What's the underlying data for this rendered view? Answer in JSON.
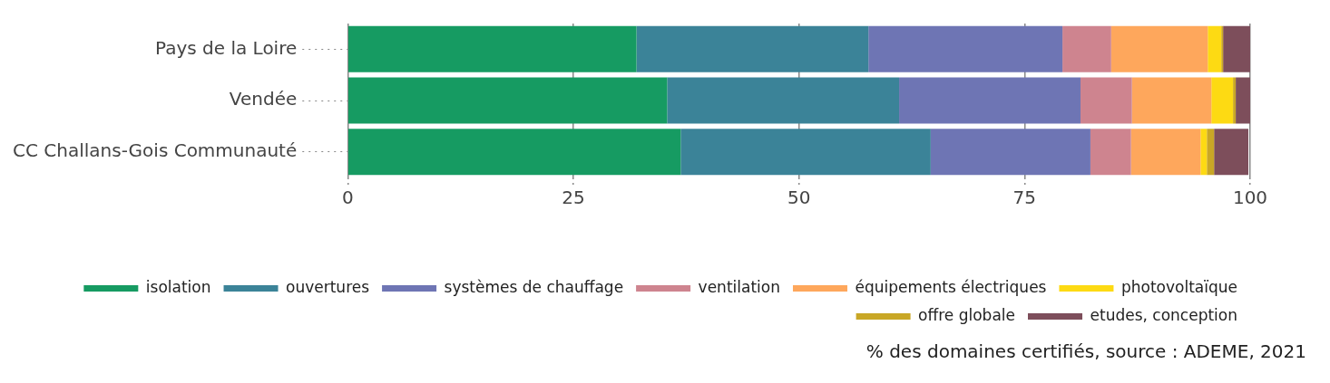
{
  "chart_data": {
    "type": "bar",
    "orientation": "horizontal",
    "stacked": true,
    "categories": [
      "Pays de la Loire",
      "Vendée",
      "CC Challans-Gois Communauté"
    ],
    "series": [
      {
        "name": "isolation",
        "color": "#169b62",
        "values": [
          32.0,
          35.4,
          36.9
        ]
      },
      {
        "name": "ouvertures",
        "color": "#3b8398",
        "values": [
          25.7,
          25.7,
          27.7
        ]
      },
      {
        "name": "systèmes de chauffage",
        "color": "#6e75b4",
        "values": [
          21.5,
          20.1,
          17.7
        ]
      },
      {
        "name": "ventilation",
        "color": "#ce848f",
        "values": [
          5.4,
          5.7,
          4.5
        ]
      },
      {
        "name": "équipements électriques",
        "color": "#fea75c",
        "values": [
          10.7,
          8.8,
          7.7
        ]
      },
      {
        "name": "photovoltaïque",
        "color": "#fdda13",
        "values": [
          1.5,
          2.4,
          0.7
        ]
      },
      {
        "name": "offre globale",
        "color": "#c9a726",
        "values": [
          0.2,
          0.3,
          0.8
        ]
      },
      {
        "name": "etudes, conception",
        "color": "#7d4e5b",
        "values": [
          3.0,
          1.6,
          3.8
        ]
      }
    ],
    "xlim": [
      0,
      100
    ],
    "xticks": [
      0,
      25,
      50,
      75,
      100
    ],
    "grid": "x",
    "legend": "bottom",
    "annotations": [
      "% des domaines certifiés, source : ADEME, 2021"
    ]
  }
}
